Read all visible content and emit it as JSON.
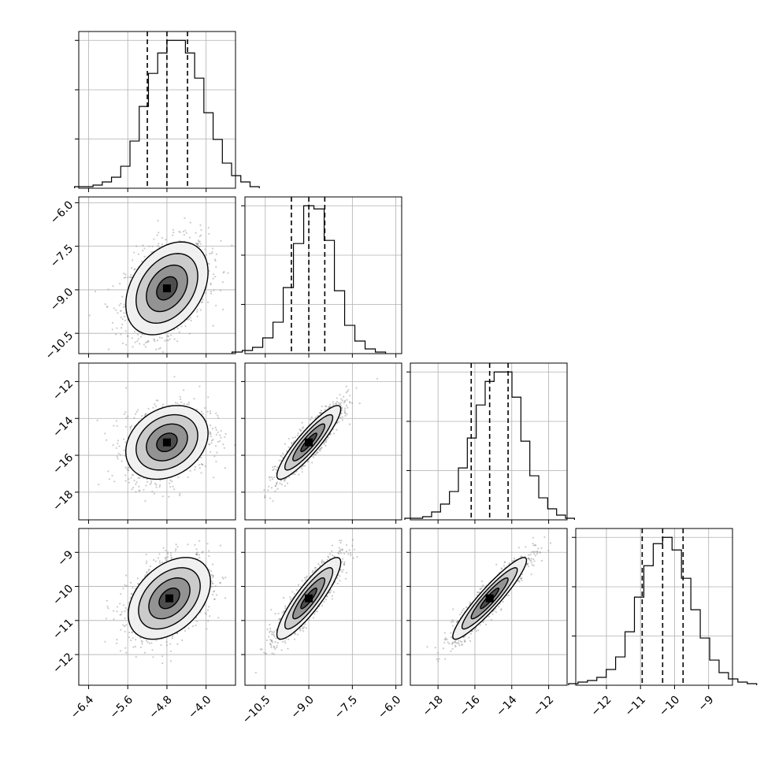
{
  "chart_data": {
    "type": "corner",
    "parameters": 4,
    "colors": {
      "line": "#000000",
      "grid": "#b0b0b0",
      "scatter": "#8c8c8c",
      "background": "#ffffff"
    },
    "grid": true,
    "axes": [
      {
        "lim": [
          -6.6,
          -3.4
        ],
        "ticks": [
          -6.4,
          -5.6,
          -4.8,
          -4.0
        ],
        "tick_labels": [
          "−6.4",
          "−5.6",
          "−4.8",
          "−4.0"
        ]
      },
      {
        "lim": [
          -11.2,
          -5.8
        ],
        "ticks": [
          -10.5,
          -9.0,
          -7.5,
          -6.0
        ],
        "tick_labels": [
          "−10.5",
          "−9.0",
          "−7.5",
          "−6.0"
        ]
      },
      {
        "lim": [
          -19.5,
          -11.0
        ],
        "ticks": [
          -18,
          -16,
          -14,
          -12
        ],
        "tick_labels": [
          "−18",
          "−16",
          "−14",
          "−12"
        ]
      },
      {
        "lim": [
          -12.9,
          -8.3
        ],
        "ticks": [
          -12,
          -11,
          -10,
          -9
        ],
        "tick_labels": [
          "−12",
          "−11",
          "−10",
          "−9"
        ]
      }
    ],
    "marginals": [
      {
        "quantiles": [
          -5.2,
          -4.8,
          -4.38
        ],
        "counts": [
          1,
          1,
          2,
          4,
          7,
          14,
          30,
          52,
          73,
          86,
          94,
          94,
          86,
          70,
          48,
          31,
          16,
          8,
          4,
          1
        ]
      },
      {
        "quantiles": [
          -9.6,
          -9.0,
          -8.45
        ],
        "counts": [
          1,
          2,
          4,
          10,
          20,
          42,
          70,
          94,
          92,
          72,
          40,
          18,
          8,
          3,
          1
        ]
      },
      {
        "quantiles": [
          -16.2,
          -15.2,
          -14.2
        ],
        "counts": [
          1,
          1,
          2,
          5,
          10,
          18,
          33,
          52,
          73,
          88,
          94,
          94,
          78,
          50,
          28,
          14,
          7,
          3,
          1
        ]
      },
      {
        "quantiles": [
          -10.95,
          -10.35,
          -9.75
        ],
        "counts": [
          1,
          2,
          3,
          5,
          10,
          18,
          34,
          56,
          76,
          90,
          94,
          86,
          68,
          48,
          30,
          16,
          8,
          4,
          2,
          1
        ]
      }
    ],
    "pairs": [
      {
        "row": 1,
        "col": 0,
        "mean": [
          -4.8,
          -8.95
        ],
        "std": [
          0.42,
          0.8
        ],
        "corr": 0.35
      },
      {
        "row": 2,
        "col": 0,
        "mean": [
          -4.8,
          -15.3
        ],
        "std": [
          0.42,
          1.0
        ],
        "corr": 0.25
      },
      {
        "row": 2,
        "col": 1,
        "mean": [
          -9.0,
          -15.3
        ],
        "std": [
          0.55,
          1.0
        ],
        "corr": 0.9
      },
      {
        "row": 3,
        "col": 0,
        "mean": [
          -4.75,
          -10.35
        ],
        "std": [
          0.42,
          0.6
        ],
        "corr": 0.4
      },
      {
        "row": 3,
        "col": 1,
        "mean": [
          -9.0,
          -10.35
        ],
        "std": [
          0.55,
          0.6
        ],
        "corr": 0.88
      },
      {
        "row": 3,
        "col": 2,
        "mean": [
          -15.2,
          -10.35
        ],
        "std": [
          1.0,
          0.6
        ],
        "corr": 0.93
      }
    ],
    "contour_levels_sigma": [
      0.5,
      1.0,
      1.5,
      2.0
    ]
  }
}
